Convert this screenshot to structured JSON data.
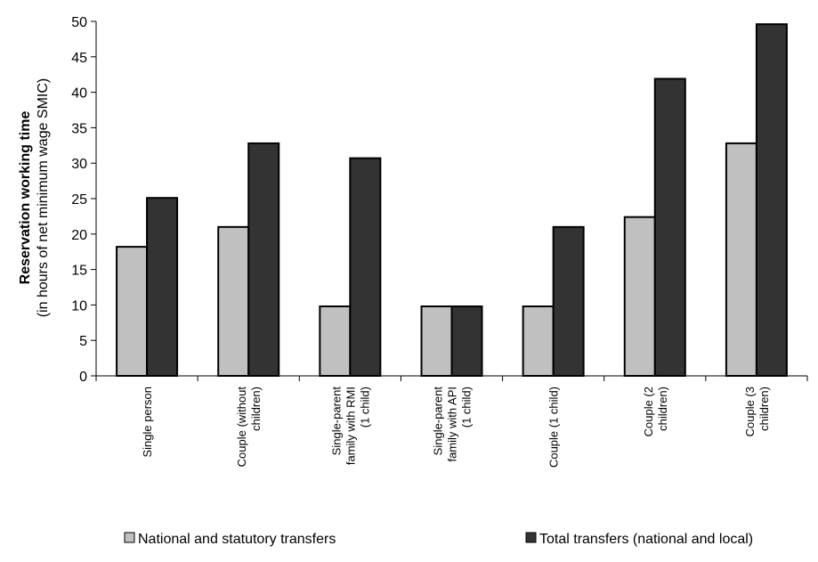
{
  "chart_data": {
    "type": "bar",
    "categories": [
      [
        "Single person"
      ],
      [
        "Couple (without",
        "children)"
      ],
      [
        "Single-parent",
        "family with RMI",
        "(1 child)"
      ],
      [
        "Single-parent",
        "family with API",
        "(1 child)"
      ],
      [
        "Couple (1 child)"
      ],
      [
        "Couple (2",
        "children)"
      ],
      [
        "Couple (3",
        "children)"
      ]
    ],
    "series": [
      {
        "name": "National and statutory transfers",
        "color": "#c0c0c0",
        "values": [
          18.2,
          21.0,
          9.8,
          9.8,
          9.8,
          22.4,
          32.8
        ]
      },
      {
        "name": "Total transfers (national and local)",
        "color": "#333333",
        "values": [
          25.1,
          32.8,
          30.7,
          9.8,
          21.0,
          41.9,
          49.6
        ]
      }
    ],
    "ylabel": "Reservation working time",
    "ylabel_sub": "(in hours of net minimum wage SMIC)",
    "ylim": [
      0,
      50
    ],
    "yticks": [
      0,
      5,
      10,
      15,
      20,
      25,
      30,
      35,
      40,
      45,
      50
    ],
    "grid": false,
    "legend_position": "bottom"
  }
}
